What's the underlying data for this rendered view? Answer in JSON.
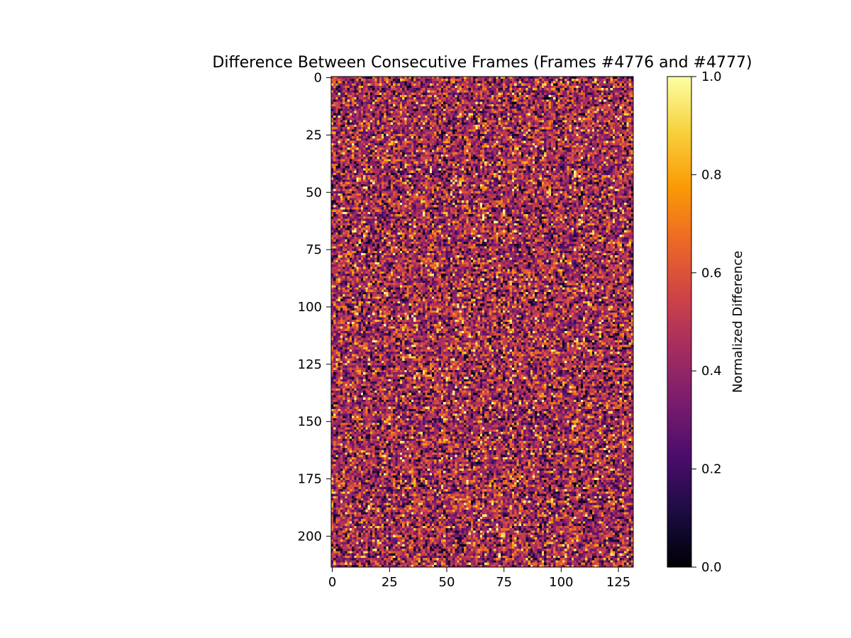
{
  "chart_data": {
    "type": "heatmap",
    "title": "Difference Between Consecutive Frames (Frames #4776 and #4777)",
    "xlabel": "",
    "ylabel": "",
    "image_shape": {
      "rows": 214,
      "cols": 132
    },
    "x_range": [
      0,
      132
    ],
    "y_range": [
      0,
      214
    ],
    "y_axis_inverted": true,
    "x_ticks": [
      0,
      25,
      50,
      75,
      100,
      125
    ],
    "y_ticks": [
      0,
      25,
      50,
      75,
      100,
      125,
      150,
      175,
      200
    ],
    "colormap": "inferno",
    "colormap_stops": [
      "#000004",
      "#1b0c41",
      "#4a0c6b",
      "#781c6d",
      "#a52c60",
      "#cf4446",
      "#ed6925",
      "#fb9b06",
      "#f7d13d",
      "#fcffa4"
    ],
    "value_range": [
      0.0,
      1.0
    ],
    "value_distribution": "random noise, mostly in 0.2–0.6 range with scattered bright pixels near 1.0",
    "colorbar": {
      "label": "Normalized Difference",
      "ticks": [
        0.0,
        0.2,
        0.4,
        0.6,
        0.8,
        1.0
      ],
      "tick_labels": [
        "0.0",
        "0.2",
        "0.4",
        "0.6",
        "0.8",
        "1.0"
      ]
    }
  }
}
